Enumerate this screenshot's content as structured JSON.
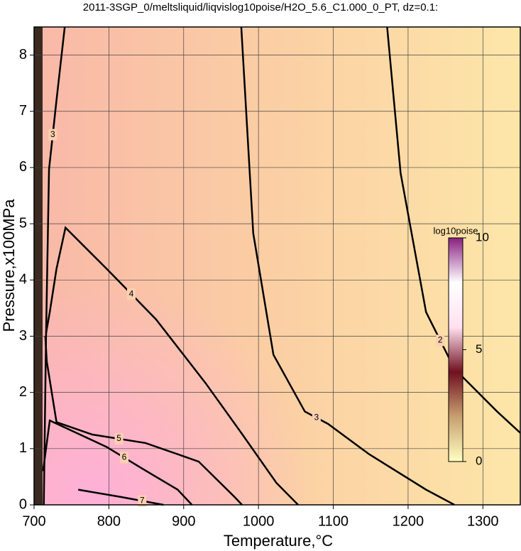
{
  "chart_data": {
    "type": "contour",
    "title": "2011-3SGP_0/meltsliquid/liqvislog10poise/H2O_5.6_C1.000_0_PT, dz=0.1:",
    "x_label": "Temperature,°C",
    "y_label": "Pressure,x100MPa",
    "xlim": [
      700,
      1350
    ],
    "ylim": [
      0,
      8.5
    ],
    "xticks": [
      700,
      800,
      900,
      1000,
      1100,
      1200,
      1300
    ],
    "yticks": [
      0,
      1,
      2,
      3,
      4,
      5,
      6,
      7,
      8
    ],
    "grid": true,
    "series": [
      {
        "name": "2",
        "color": "#000000",
        "x": [
          1172,
          1190,
          1224,
          1262,
          1319,
          1350
        ],
        "y": [
          8.5,
          5.9,
          3.43,
          2.42,
          1.66,
          1.28
        ]
      },
      {
        "name": "3",
        "color": "#000000",
        "x": [
          977,
          993,
          1020,
          1062,
          1093,
          1148,
          1224,
          1262
        ],
        "y": [
          8.5,
          4.83,
          2.67,
          1.66,
          1.44,
          0.9,
          0.27,
          0
        ]
      },
      {
        "name": "3",
        "color": "#000000",
        "x": [
          713,
          716,
          720,
          730,
          741
        ],
        "y": [
          0,
          3.0,
          5.97,
          7.2,
          8.5
        ]
      },
      {
        "name": "4",
        "color": "#000000",
        "x": [
          716,
          721,
          730,
          742,
          797,
          863,
          929,
          977,
          1024,
          1053
        ],
        "y": [
          3.05,
          3.43,
          4.2,
          4.93,
          4.2,
          3.3,
          2.17,
          1.28,
          0.39,
          0
        ]
      },
      {
        "name": "5",
        "color": "#000000",
        "x": [
          715,
          717,
          730,
          778,
          849,
          920,
          968,
          978
        ],
        "y": [
          3.0,
          2.55,
          1.47,
          1.25,
          1.1,
          0.77,
          0.14,
          0
        ]
      },
      {
        "name": "6",
        "color": "#000000",
        "x": [
          712,
          721,
          797,
          844,
          892,
          911
        ],
        "y": [
          0.6,
          1.5,
          1.03,
          0.65,
          0.27,
          0
        ]
      },
      {
        "name": "7",
        "color": "#000000",
        "x": [
          759,
          816,
          873
        ],
        "y": [
          0.27,
          0.14,
          0
        ]
      }
    ],
    "colorbar": {
      "label": "log10poise",
      "lim": [
        0,
        10
      ],
      "ticks": [
        0,
        5,
        10
      ],
      "colors": [
        "#ffffc0",
        "#c8a070",
        "#701020",
        "#ffe0f0",
        "#ffffff",
        "#8a2080"
      ]
    }
  }
}
